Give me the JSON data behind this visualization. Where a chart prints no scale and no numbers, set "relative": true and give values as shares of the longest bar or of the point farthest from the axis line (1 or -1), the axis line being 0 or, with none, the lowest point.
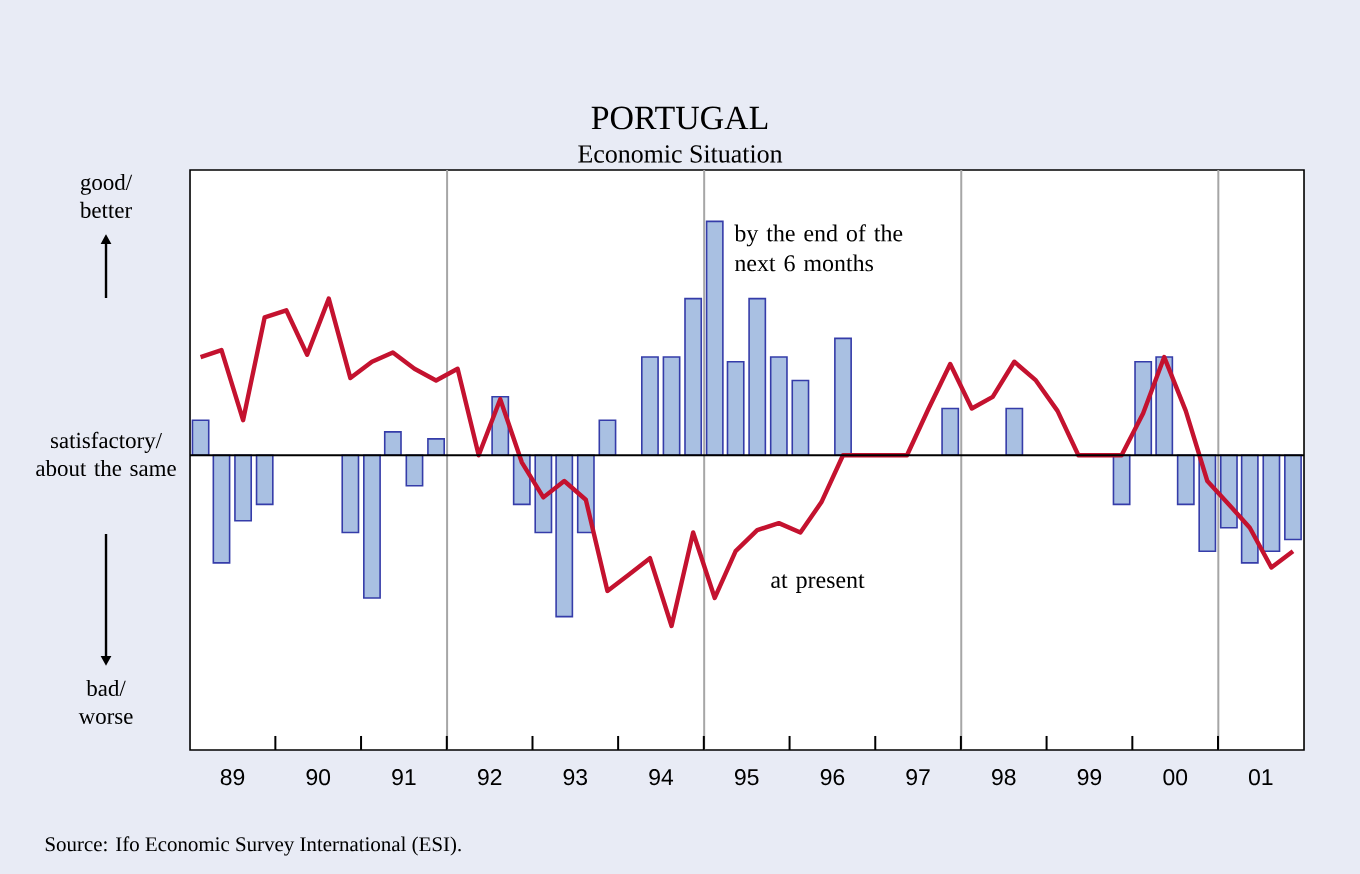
{
  "chart_data": {
    "type": "bar",
    "title": "PORTUGAL",
    "subtitle": "Economic Situation",
    "relative": true,
    "x": [
      "1989-02-15",
      "1989-05-15",
      "1989-08-15",
      "1989-11-15",
      "1990-02-15",
      "1990-05-15",
      "1990-08-15",
      "1990-11-15",
      "1991-02-15",
      "1991-05-15",
      "1991-08-15",
      "1991-11-15",
      "1992-02-15",
      "1992-05-15",
      "1992-08-15",
      "1992-11-15",
      "1993-02-15",
      "1993-05-15",
      "1993-08-15",
      "1993-11-15",
      "1994-02-15",
      "1994-05-15",
      "1994-08-15",
      "1994-11-15",
      "1995-02-15",
      "1995-05-15",
      "1995-08-15",
      "1995-11-15",
      "1996-02-15",
      "1996-05-15",
      "1996-08-15",
      "1996-11-15",
      "1997-02-15",
      "1997-05-15",
      "1997-08-15",
      "1997-11-15",
      "1998-02-15",
      "1998-05-15",
      "1998-08-15",
      "1998-11-15",
      "1999-02-15",
      "1999-05-15",
      "1999-08-15",
      "1999-11-15",
      "2000-02-15",
      "2000-05-15",
      "2000-08-15",
      "2000-11-15",
      "2001-02-15",
      "2001-05-15",
      "2001-08-15",
      "2001-11-15"
    ],
    "xlim": [
      "1989-01-01",
      "2002-01-01"
    ],
    "xticks": [
      {
        "value": "1989-07-01",
        "label": "89"
      },
      {
        "value": "1990-07-01",
        "label": "90"
      },
      {
        "value": "1991-07-01",
        "label": "91"
      },
      {
        "value": "1992-07-01",
        "label": "92"
      },
      {
        "value": "1993-07-01",
        "label": "93"
      },
      {
        "value": "1994-07-01",
        "label": "94"
      },
      {
        "value": "1995-07-01",
        "label": "95"
      },
      {
        "value": "1996-07-01",
        "label": "96"
      },
      {
        "value": "1997-07-01",
        "label": "97"
      },
      {
        "value": "1998-07-01",
        "label": "98"
      },
      {
        "value": "1999-07-01",
        "label": "99"
      },
      {
        "value": "2000-07-01",
        "label": "00"
      },
      {
        "value": "2001-07-01",
        "label": "01"
      }
    ],
    "series": [
      {
        "color": "#a9c0e2",
        "values": [
          0.15,
          -0.46,
          -0.28,
          -0.21,
          null,
          null,
          null,
          -0.33,
          -0.61,
          0.1,
          -0.13,
          0.07,
          null,
          null,
          0.25,
          -0.21,
          -0.33,
          -0.69,
          -0.33,
          0.15,
          null,
          0.42,
          0.42,
          0.67,
          1,
          0.4,
          0.67,
          0.42,
          0.32,
          null,
          0.5,
          null,
          null,
          null,
          null,
          0.2,
          null,
          null,
          0.2,
          null,
          null,
          null,
          null,
          -0.21,
          0.4,
          0.42,
          -0.21,
          -0.41,
          -0.31,
          -0.46,
          -0.41,
          -0.36
        ]
      },
      {
        "type": "line",
        "color": "#c4122f",
        "values": [
          0.42,
          0.45,
          0.15,
          0.59,
          0.62,
          0.43,
          0.67,
          0.33,
          0.4,
          0.44,
          0.37,
          0.32,
          0.37,
          0,
          0.24,
          -0.03,
          -0.18,
          -0.11,
          -0.19,
          -0.58,
          -0.51,
          -0.44,
          -0.73,
          -0.33,
          -0.61,
          -0.41,
          -0.32,
          -0.29,
          -0.33,
          -0.2,
          0,
          0,
          0,
          0,
          0.2,
          0.39,
          0.2,
          0.25,
          0.4,
          0.32,
          0.19,
          0,
          0,
          0,
          0.18,
          0.42,
          0.19,
          -0.11,
          -0.21,
          -0.31,
          -0.48,
          -0.41
        ]
      }
    ],
    "ref_lines": [
      {
        "axis": "x",
        "value": "1992-01-01",
        "color": "#a6a6a6"
      },
      {
        "axis": "x",
        "value": "1995-01-01",
        "color": "#a6a6a6"
      },
      {
        "axis": "x",
        "value": "1998-01-01",
        "color": "#a6a6a6"
      },
      {
        "axis": "x",
        "value": "2001-01-01",
        "color": "#a6a6a6"
      }
    ],
    "tick_labels": "x",
    "annotations": [
      "good/ better",
      "satisfactory/ about the same",
      "bad/ worse",
      "Source: Ifo Economic Survey International (ESI).",
      "by the end of the next 6 months",
      "at present"
    ]
  }
}
